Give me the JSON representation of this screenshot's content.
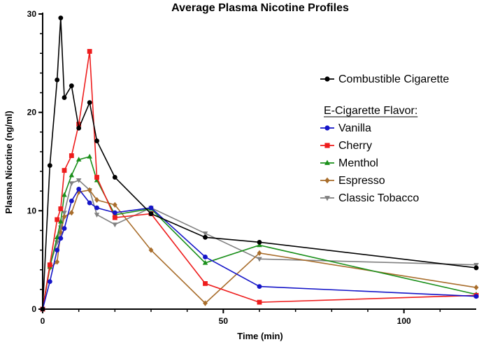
{
  "chart_data": {
    "type": "line",
    "title": "Average Plasma Nicotine Profiles",
    "xlabel": "Time (min)",
    "ylabel": "Plasma Nicotine (ng/ml)",
    "xlim": [
      0,
      120
    ],
    "ylim": [
      0,
      30
    ],
    "xticks": [
      0,
      50,
      100
    ],
    "yticks": [
      0,
      10,
      20,
      30
    ],
    "legend_position": "right",
    "legend_header": "E-Cigarette Flavor:",
    "series": [
      {
        "name": "Combustible Cigarette",
        "color": "#000000",
        "marker": "circle",
        "x": [
          0,
          2,
          4,
          5,
          6,
          8,
          10,
          13,
          15,
          20,
          30,
          45,
          60,
          120
        ],
        "y": [
          0,
          14.6,
          23.3,
          29.6,
          21.5,
          22.7,
          18.4,
          21.0,
          17.1,
          13.4,
          9.7,
          7.3,
          6.8,
          4.2
        ]
      },
      {
        "name": "Vanilla",
        "color": "#1515c8",
        "marker": "circle",
        "x": [
          0,
          2,
          4,
          5,
          6,
          8,
          10,
          13,
          15,
          20,
          30,
          45,
          60,
          120
        ],
        "y": [
          0,
          2.8,
          6.0,
          7.2,
          8.2,
          11.0,
          12.2,
          10.8,
          10.3,
          9.8,
          10.3,
          5.3,
          2.3,
          1.3
        ]
      },
      {
        "name": "Cherry",
        "color": "#ee1c1c",
        "marker": "square",
        "x": [
          0,
          2,
          4,
          5,
          6,
          8,
          10,
          13,
          15,
          20,
          30,
          45,
          60,
          120
        ],
        "y": [
          0,
          4.5,
          9.1,
          10.2,
          14.1,
          15.6,
          18.8,
          26.2,
          13.4,
          9.3,
          9.7,
          2.6,
          0.7,
          1.4
        ]
      },
      {
        "name": "Menthol",
        "color": "#1a8f1a",
        "marker": "triangle",
        "x": [
          0,
          2,
          4,
          5,
          6,
          8,
          10,
          13,
          15,
          20,
          30,
          45,
          60,
          120
        ],
        "y": [
          0,
          4.3,
          7.3,
          8.9,
          11.6,
          13.6,
          15.2,
          15.5,
          13.1,
          9.6,
          10.2,
          4.7,
          6.5,
          1.5
        ]
      },
      {
        "name": "Espresso",
        "color": "#a86d2b",
        "marker": "diamond",
        "x": [
          0,
          2,
          4,
          5,
          6,
          8,
          10,
          13,
          15,
          20,
          30,
          45,
          60,
          120
        ],
        "y": [
          0,
          4.2,
          4.8,
          7.8,
          9.4,
          9.8,
          11.9,
          12.1,
          11.1,
          10.6,
          6.0,
          0.6,
          5.7,
          2.2
        ]
      },
      {
        "name": "Classic Tobacco",
        "color": "#808080",
        "marker": "triangle-down",
        "x": [
          0,
          2,
          4,
          5,
          6,
          8,
          10,
          13,
          15,
          20,
          30,
          45,
          60,
          120
        ],
        "y": [
          0,
          4.4,
          6.8,
          8.3,
          9.8,
          12.8,
          13.1,
          12.1,
          9.6,
          8.6,
          10.3,
          7.7,
          5.1,
          4.5
        ]
      }
    ]
  }
}
